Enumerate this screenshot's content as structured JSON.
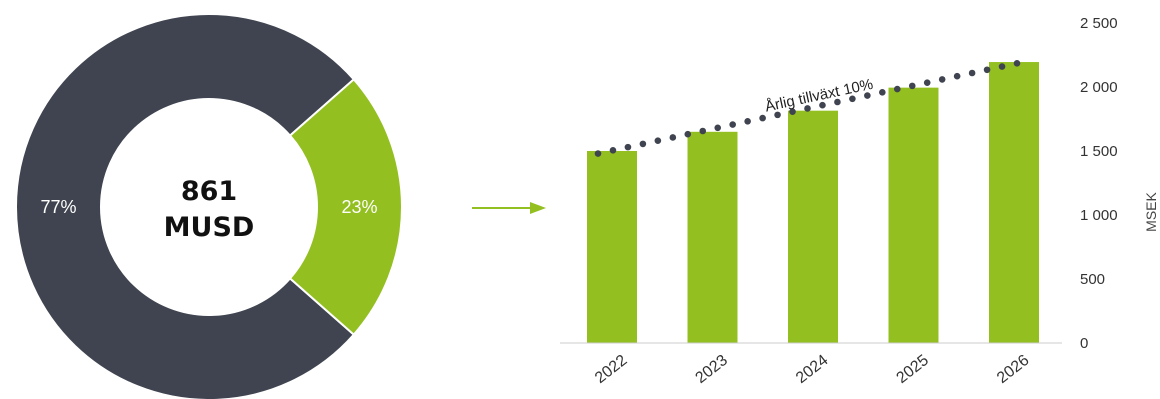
{
  "colors": {
    "dark": "#3f4450",
    "green": "#93c020",
    "text_gray": "#444444",
    "dots": "#3f4450",
    "white": "#ffffff"
  },
  "chart_data": [
    {
      "type": "pie",
      "variant": "donut",
      "center_value": "861",
      "center_unit": "MUSD",
      "slices": [
        {
          "label": "77%",
          "value": 77,
          "color": "#3f4450"
        },
        {
          "label": "23%",
          "value": 23,
          "color": "#93c020"
        }
      ]
    },
    {
      "type": "bar",
      "categories": [
        "2022",
        "2023",
        "2024",
        "2025",
        "2026"
      ],
      "values": [
        1500,
        1650,
        1815,
        1995,
        2195
      ],
      "ylabel": "MSEK",
      "ylim": [
        0,
        2500
      ],
      "yticks": [
        "0",
        "500",
        "1 000",
        "1 500",
        "2 000",
        "2 500"
      ],
      "ytick_values": [
        0,
        500,
        1000,
        1500,
        2000,
        2500
      ],
      "y_axis_position": "right",
      "trendline": {
        "style": "dotted",
        "label": "Årlig tillväxt 10%",
        "start": 1480,
        "end": 2185
      }
    }
  ],
  "connector": "arrow-right"
}
